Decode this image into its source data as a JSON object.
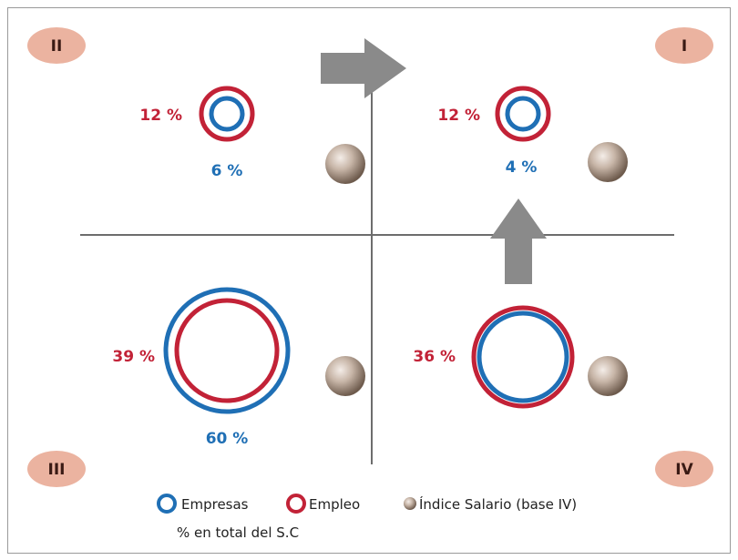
{
  "quadrants": [
    {
      "id": "I",
      "label": "I",
      "empresas": "4 %",
      "empleo": "12 %",
      "empresas_value": 4,
      "empleo_value": 12
    },
    {
      "id": "II",
      "label": "II",
      "empresas": "6 %",
      "empleo": "12 %",
      "empresas_value": 6,
      "empleo_value": 12
    },
    {
      "id": "III",
      "label": "III",
      "empresas": "60 %",
      "empleo": "39 %",
      "empresas_value": 60,
      "empleo_value": 39
    },
    {
      "id": "IV",
      "label": "IV",
      "empresas": "",
      "empleo": "36 %",
      "empresas_value": 36,
      "empleo_value": 36
    }
  ],
  "legend": {
    "empresas": "Empresas",
    "empleo": "Empleo",
    "indice": "Índice Salario (base IV)",
    "note": "% en total del S.C"
  },
  "colors": {
    "empresas": "#1f6fb5",
    "empleo": "#c22237",
    "badge": "#ebb3a0",
    "axis": "#6d6d6d",
    "arrow": "#8a8a8a"
  }
}
